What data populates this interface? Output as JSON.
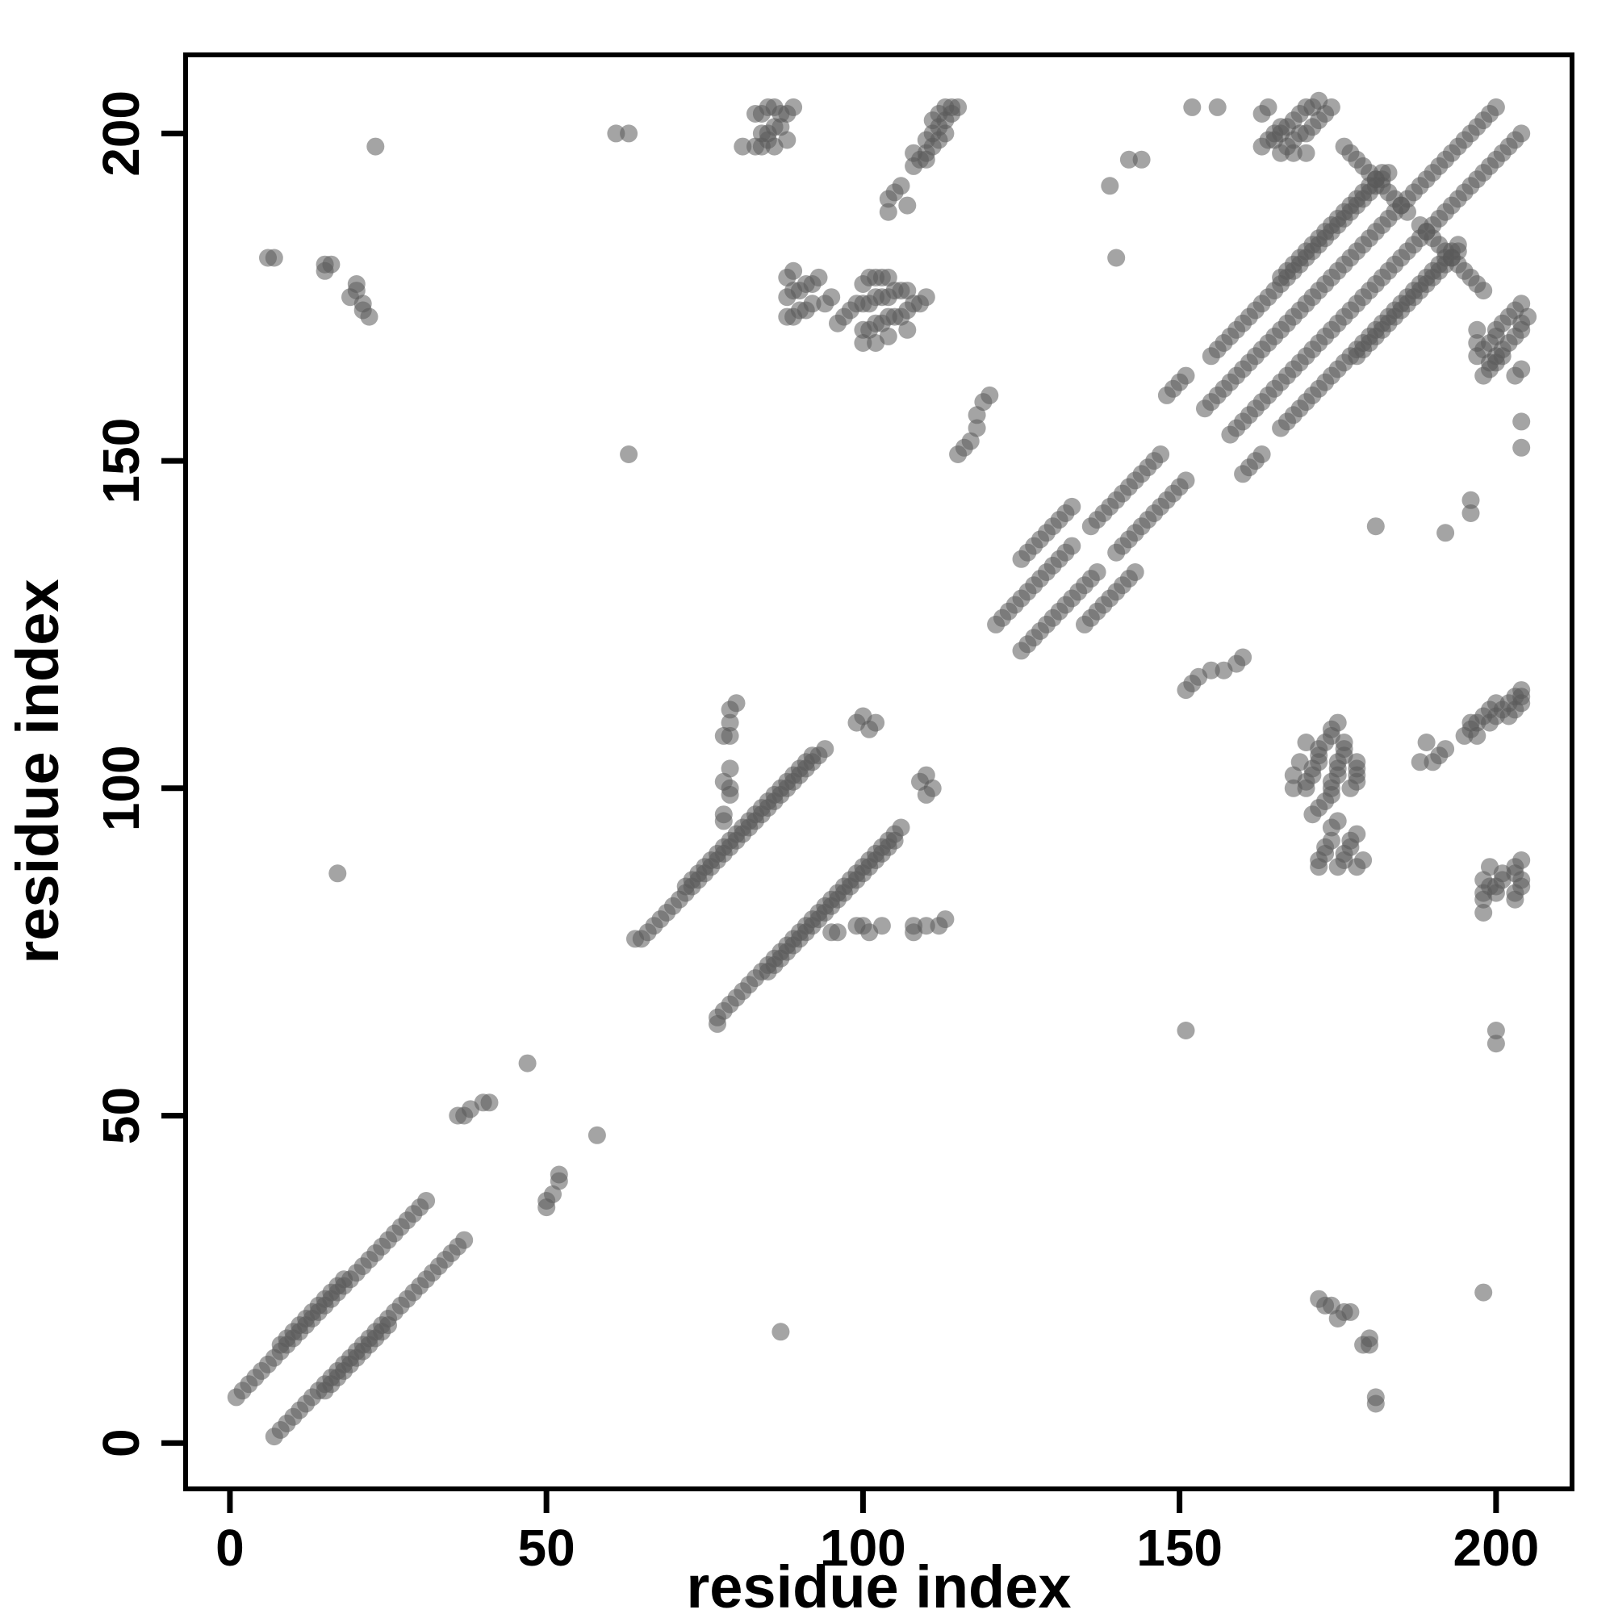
{
  "chart_data": {
    "type": "scatter",
    "title": "",
    "xlabel": "residue index",
    "ylabel": "residue index",
    "xlim": [
      -7,
      212
    ],
    "ylim": [
      -7,
      212
    ],
    "xticks": [
      0,
      50,
      100,
      150,
      200
    ],
    "yticks": [
      0,
      50,
      100,
      150,
      200
    ],
    "grid": false,
    "legend": "none",
    "symmetric": true,
    "marker": {
      "color": "#5a5a5a",
      "opacity": 0.55,
      "radius_px": 11
    },
    "contacts": [
      [
        1,
        7
      ],
      [
        2,
        8
      ],
      [
        3,
        9
      ],
      [
        4,
        10
      ],
      [
        5,
        11
      ],
      [
        6,
        12
      ],
      [
        7,
        13
      ],
      [
        8,
        14
      ],
      [
        9,
        15
      ],
      [
        10,
        16
      ],
      [
        11,
        17
      ],
      [
        12,
        18
      ],
      [
        13,
        19
      ],
      [
        14,
        20
      ],
      [
        15,
        21
      ],
      [
        16,
        22
      ],
      [
        17,
        23
      ],
      [
        18,
        24
      ],
      [
        19,
        25
      ],
      [
        20,
        26
      ],
      [
        21,
        27
      ],
      [
        22,
        28
      ],
      [
        23,
        29
      ],
      [
        24,
        30
      ],
      [
        25,
        31
      ],
      [
        26,
        32
      ],
      [
        27,
        33
      ],
      [
        28,
        34
      ],
      [
        29,
        35
      ],
      [
        8,
        15
      ],
      [
        9,
        16
      ],
      [
        10,
        17
      ],
      [
        11,
        18
      ],
      [
        12,
        19
      ],
      [
        13,
        20
      ],
      [
        14,
        21
      ],
      [
        15,
        22
      ],
      [
        16,
        23
      ],
      [
        17,
        24
      ],
      [
        18,
        25
      ],
      [
        30,
        36
      ],
      [
        31,
        37
      ],
      [
        36,
        50
      ],
      [
        37,
        50
      ],
      [
        38,
        51
      ],
      [
        40,
        52
      ],
      [
        41,
        52
      ],
      [
        47,
        58
      ],
      [
        66,
        78
      ],
      [
        67,
        79
      ],
      [
        68,
        80
      ],
      [
        69,
        81
      ],
      [
        70,
        82
      ],
      [
        71,
        83
      ],
      [
        72,
        84
      ],
      [
        73,
        85
      ],
      [
        74,
        86
      ],
      [
        75,
        87
      ],
      [
        76,
        88
      ],
      [
        77,
        89
      ],
      [
        78,
        90
      ],
      [
        79,
        91
      ],
      [
        80,
        92
      ],
      [
        81,
        93
      ],
      [
        82,
        94
      ],
      [
        83,
        95
      ],
      [
        84,
        96
      ],
      [
        85,
        97
      ],
      [
        86,
        98
      ],
      [
        87,
        99
      ],
      [
        88,
        100
      ],
      [
        89,
        101
      ],
      [
        90,
        102
      ],
      [
        91,
        103
      ],
      [
        92,
        104
      ],
      [
        93,
        105
      ],
      [
        94,
        106
      ],
      [
        72,
        85
      ],
      [
        73,
        86
      ],
      [
        74,
        87
      ],
      [
        75,
        88
      ],
      [
        76,
        89
      ],
      [
        77,
        90
      ],
      [
        78,
        91
      ],
      [
        79,
        92
      ],
      [
        80,
        93
      ],
      [
        81,
        94
      ],
      [
        82,
        95
      ],
      [
        83,
        96
      ],
      [
        84,
        97
      ],
      [
        85,
        98
      ],
      [
        86,
        99
      ],
      [
        87,
        100
      ],
      [
        88,
        101
      ],
      [
        89,
        102
      ],
      [
        90,
        103
      ],
      [
        91,
        104
      ],
      [
        92,
        105
      ],
      [
        64,
        77
      ],
      [
        65,
        77
      ],
      [
        78,
        95
      ],
      [
        78,
        96
      ],
      [
        79,
        99
      ],
      [
        79,
        100
      ],
      [
        78,
        101
      ],
      [
        79,
        103
      ],
      [
        78,
        108
      ],
      [
        79,
        108
      ],
      [
        79,
        110
      ],
      [
        79,
        112
      ],
      [
        80,
        113
      ],
      [
        99,
        110
      ],
      [
        100,
        111
      ],
      [
        101,
        109
      ],
      [
        102,
        110
      ],
      [
        17,
        87
      ],
      [
        63,
        151
      ],
      [
        121,
        125
      ],
      [
        122,
        126
      ],
      [
        123,
        127
      ],
      [
        124,
        128
      ],
      [
        125,
        129
      ],
      [
        126,
        130
      ],
      [
        127,
        131
      ],
      [
        128,
        132
      ],
      [
        129,
        133
      ],
      [
        130,
        134
      ],
      [
        131,
        135
      ],
      [
        132,
        136
      ],
      [
        133,
        137
      ],
      [
        136,
        140
      ],
      [
        137,
        141
      ],
      [
        138,
        142
      ],
      [
        139,
        143
      ],
      [
        140,
        144
      ],
      [
        141,
        145
      ],
      [
        142,
        146
      ],
      [
        143,
        147
      ],
      [
        144,
        148
      ],
      [
        145,
        149
      ],
      [
        146,
        150
      ],
      [
        147,
        151
      ],
      [
        154,
        158
      ],
      [
        155,
        159
      ],
      [
        156,
        160
      ],
      [
        157,
        161
      ],
      [
        158,
        162
      ],
      [
        159,
        163
      ],
      [
        160,
        164
      ],
      [
        161,
        165
      ],
      [
        162,
        166
      ],
      [
        163,
        167
      ],
      [
        164,
        168
      ],
      [
        165,
        169
      ],
      [
        166,
        170
      ],
      [
        167,
        171
      ],
      [
        168,
        172
      ],
      [
        169,
        173
      ],
      [
        170,
        174
      ],
      [
        171,
        175
      ],
      [
        172,
        176
      ],
      [
        173,
        177
      ],
      [
        174,
        178
      ],
      [
        175,
        179
      ],
      [
        176,
        180
      ],
      [
        177,
        181
      ],
      [
        178,
        182
      ],
      [
        179,
        183
      ],
      [
        180,
        184
      ],
      [
        181,
        185
      ],
      [
        182,
        186
      ],
      [
        183,
        187
      ],
      [
        184,
        188
      ],
      [
        185,
        189
      ],
      [
        186,
        190
      ],
      [
        187,
        191
      ],
      [
        188,
        192
      ],
      [
        189,
        193
      ],
      [
        190,
        194
      ],
      [
        191,
        195
      ],
      [
        192,
        196
      ],
      [
        193,
        197
      ],
      [
        194,
        198
      ],
      [
        195,
        199
      ],
      [
        196,
        200
      ],
      [
        197,
        201
      ],
      [
        198,
        202
      ],
      [
        199,
        203
      ],
      [
        200,
        204
      ],
      [
        125,
        135
      ],
      [
        126,
        136
      ],
      [
        127,
        137
      ],
      [
        128,
        138
      ],
      [
        129,
        139
      ],
      [
        130,
        140
      ],
      [
        131,
        141
      ],
      [
        132,
        142
      ],
      [
        133,
        143
      ],
      [
        148,
        160
      ],
      [
        149,
        161
      ],
      [
        150,
        162
      ],
      [
        151,
        163
      ],
      [
        155,
        166
      ],
      [
        156,
        167
      ],
      [
        157,
        168
      ],
      [
        158,
        169
      ],
      [
        159,
        170
      ],
      [
        160,
        171
      ],
      [
        161,
        172
      ],
      [
        162,
        173
      ],
      [
        163,
        174
      ],
      [
        164,
        175
      ],
      [
        165,
        176
      ],
      [
        166,
        177
      ],
      [
        167,
        178
      ],
      [
        168,
        179
      ],
      [
        169,
        180
      ],
      [
        170,
        181
      ],
      [
        171,
        182
      ],
      [
        172,
        183
      ],
      [
        173,
        184
      ],
      [
        174,
        185
      ],
      [
        175,
        186
      ],
      [
        176,
        187
      ],
      [
        177,
        188
      ],
      [
        178,
        189
      ],
      [
        179,
        190
      ],
      [
        180,
        191
      ],
      [
        181,
        192
      ],
      [
        182,
        193
      ],
      [
        183,
        194
      ],
      [
        166,
        178
      ],
      [
        167,
        179
      ],
      [
        168,
        180
      ],
      [
        169,
        181
      ],
      [
        170,
        182
      ],
      [
        171,
        183
      ],
      [
        172,
        184
      ],
      [
        173,
        185
      ],
      [
        174,
        186
      ],
      [
        175,
        187
      ],
      [
        176,
        188
      ],
      [
        177,
        189
      ],
      [
        178,
        190
      ],
      [
        179,
        191
      ],
      [
        180,
        192
      ],
      [
        181,
        193
      ],
      [
        182,
        194
      ],
      [
        176,
        198
      ],
      [
        177,
        197
      ],
      [
        178,
        196
      ],
      [
        179,
        195
      ],
      [
        180,
        194
      ],
      [
        181,
        193
      ],
      [
        182,
        192
      ],
      [
        183,
        191
      ],
      [
        184,
        190
      ],
      [
        185,
        189
      ],
      [
        186,
        188
      ],
      [
        163,
        198
      ],
      [
        164,
        199
      ],
      [
        165,
        199
      ],
      [
        165,
        200
      ],
      [
        166,
        200
      ],
      [
        166,
        201
      ],
      [
        167,
        201
      ],
      [
        167,
        198
      ],
      [
        168,
        202
      ],
      [
        168,
        199
      ],
      [
        169,
        203
      ],
      [
        169,
        200
      ],
      [
        170,
        204
      ],
      [
        170,
        200
      ],
      [
        171,
        201
      ],
      [
        171,
        204
      ],
      [
        172,
        202
      ],
      [
        172,
        205
      ],
      [
        173,
        203
      ],
      [
        174,
        204
      ],
      [
        166,
        197
      ],
      [
        168,
        197
      ],
      [
        170,
        197
      ],
      [
        163,
        203
      ],
      [
        164,
        204
      ],
      [
        96,
        171
      ],
      [
        97,
        172
      ],
      [
        98,
        173
      ],
      [
        99,
        174
      ],
      [
        100,
        170
      ],
      [
        101,
        170
      ],
      [
        102,
        171
      ],
      [
        103,
        171
      ],
      [
        104,
        172
      ],
      [
        105,
        172
      ],
      [
        100,
        174
      ],
      [
        101,
        174
      ],
      [
        102,
        175
      ],
      [
        103,
        175
      ],
      [
        104,
        175
      ],
      [
        105,
        176
      ],
      [
        106,
        176
      ],
      [
        107,
        176
      ],
      [
        100,
        177
      ],
      [
        101,
        178
      ],
      [
        102,
        178
      ],
      [
        106,
        172
      ],
      [
        107,
        173
      ],
      [
        108,
        174
      ],
      [
        109,
        174
      ],
      [
        110,
        175
      ],
      [
        103,
        178
      ],
      [
        104,
        178
      ],
      [
        100,
        168
      ],
      [
        102,
        168
      ],
      [
        104,
        169
      ],
      [
        107,
        170
      ],
      [
        88,
        172
      ],
      [
        89,
        172
      ],
      [
        90,
        173
      ],
      [
        91,
        173
      ],
      [
        92,
        174
      ],
      [
        88,
        175
      ],
      [
        89,
        176
      ],
      [
        90,
        176
      ],
      [
        91,
        177
      ],
      [
        92,
        177
      ],
      [
        93,
        178
      ],
      [
        88,
        178
      ],
      [
        89,
        179
      ],
      [
        94,
        174
      ],
      [
        95,
        175
      ],
      [
        83,
        198
      ],
      [
        84,
        198
      ],
      [
        85,
        199
      ],
      [
        84,
        200
      ],
      [
        85,
        200
      ],
      [
        86,
        201
      ],
      [
        87,
        201
      ],
      [
        83,
        203
      ],
      [
        84,
        203
      ],
      [
        85,
        204
      ],
      [
        86,
        204
      ],
      [
        87,
        203
      ],
      [
        88,
        203
      ],
      [
        89,
        204
      ],
      [
        88,
        199
      ],
      [
        86,
        198
      ],
      [
        81,
        198
      ],
      [
        108,
        195
      ],
      [
        109,
        196
      ],
      [
        110,
        197
      ],
      [
        111,
        198
      ],
      [
        110,
        199
      ],
      [
        111,
        200
      ],
      [
        112,
        199
      ],
      [
        112,
        201
      ],
      [
        113,
        200
      ],
      [
        113,
        202
      ],
      [
        114,
        203
      ],
      [
        112,
        203
      ],
      [
        113,
        204
      ],
      [
        114,
        204
      ],
      [
        115,
        204
      ],
      [
        111,
        202
      ],
      [
        61,
        200
      ],
      [
        63,
        200
      ],
      [
        6,
        181
      ],
      [
        7,
        181
      ],
      [
        15,
        180
      ],
      [
        16,
        180
      ],
      [
        15,
        179
      ],
      [
        19,
        175
      ],
      [
        20,
        177
      ],
      [
        20,
        176
      ],
      [
        21,
        174
      ],
      [
        21,
        173
      ],
      [
        22,
        172
      ],
      [
        23,
        198
      ],
      [
        116,
        152
      ],
      [
        117,
        153
      ],
      [
        118,
        155
      ],
      [
        118,
        157
      ],
      [
        119,
        159
      ],
      [
        120,
        160
      ],
      [
        115,
        151
      ],
      [
        140,
        181
      ],
      [
        139,
        192
      ],
      [
        142,
        196
      ],
      [
        144,
        196
      ],
      [
        152,
        204
      ],
      [
        156,
        204
      ],
      [
        104,
        190
      ],
      [
        105,
        191
      ],
      [
        106,
        192
      ],
      [
        104,
        188
      ],
      [
        107,
        189
      ],
      [
        108,
        197
      ],
      [
        110,
        196
      ]
    ]
  }
}
